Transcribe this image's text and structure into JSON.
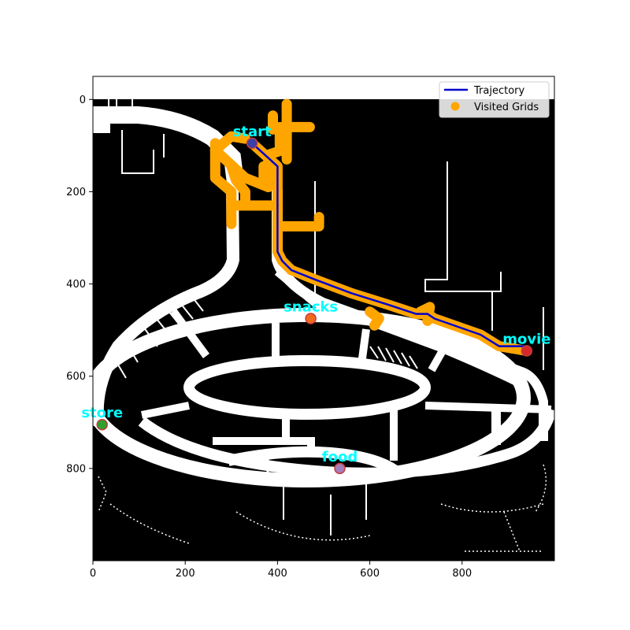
{
  "chart_data": {
    "type": "scatter",
    "xlim": [
      0,
      1000
    ],
    "ylim": [
      1000,
      -50
    ],
    "y_inverted": true,
    "grid": false,
    "legend_placement": "top-right",
    "x_ticks": [
      0,
      200,
      400,
      600,
      800
    ],
    "y_ticks": [
      0,
      200,
      400,
      600,
      800
    ],
    "background": "map image (black obstacles, white walkable corridors)",
    "series": [
      {
        "name": "Trajectory",
        "kind": "line",
        "color": "#0000cc",
        "points": [
          [
            345,
            95
          ],
          [
            400,
            145
          ],
          [
            400,
            330
          ],
          [
            410,
            350
          ],
          [
            430,
            370
          ],
          [
            480,
            390
          ],
          [
            560,
            420
          ],
          [
            640,
            445
          ],
          [
            700,
            465
          ],
          [
            725,
            465
          ],
          [
            740,
            475
          ],
          [
            840,
            510
          ],
          [
            880,
            535
          ],
          [
            940,
            535
          ]
        ]
      },
      {
        "name": "Visited Grids",
        "kind": "scatter",
        "color": "#ffa500",
        "segments": [
          [
            [
              345,
              95
            ],
            [
              400,
              145
            ],
            [
              400,
              330
            ],
            [
              410,
              350
            ],
            [
              430,
              370
            ],
            [
              480,
              390
            ],
            [
              560,
              420
            ],
            [
              640,
              445
            ],
            [
              700,
              465
            ],
            [
              725,
              465
            ],
            [
              740,
              475
            ],
            [
              840,
              510
            ],
            [
              880,
              535
            ],
            [
              940,
              545
            ]
          ],
          [
            [
              265,
              95
            ],
            [
              265,
              170
            ],
            [
              300,
              200
            ],
            [
              300,
              270
            ]
          ],
          [
            [
              265,
              110
            ],
            [
              330,
              170
            ],
            [
              380,
              190
            ]
          ],
          [
            [
              265,
              110
            ],
            [
              300,
              80
            ],
            [
              330,
              85
            ]
          ],
          [
            [
              300,
              145
            ],
            [
              310,
              175
            ],
            [
              330,
              200
            ],
            [
              330,
              230
            ],
            [
              300,
              230
            ]
          ],
          [
            [
              330,
              230
            ],
            [
              400,
              230
            ]
          ],
          [
            [
              370,
              145
            ],
            [
              370,
              175
            ],
            [
              380,
              175
            ],
            [
              380,
              120
            ],
            [
              410,
              110
            ],
            [
              410,
              80
            ],
            [
              410,
              60
            ],
            [
              470,
              60
            ]
          ],
          [
            [
              405,
              60
            ],
            [
              405,
              100
            ]
          ],
          [
            [
              400,
              275
            ],
            [
              490,
              275
            ]
          ],
          [
            [
              490,
              270
            ],
            [
              490,
              255
            ]
          ],
          [
            [
              390,
              35
            ],
            [
              390,
              65
            ]
          ],
          [
            [
              420,
              10
            ],
            [
              420,
              130
            ]
          ],
          [
            [
              600,
              460
            ],
            [
              620,
              475
            ],
            [
              610,
              490
            ]
          ],
          [
            [
              710,
              460
            ],
            [
              730,
              450
            ],
            [
              725,
              480
            ]
          ]
        ]
      }
    ],
    "points_of_interest": [
      {
        "label": "start",
        "x": 345,
        "y": 95,
        "marker_color": "#3b3fa8",
        "edge_color": "#c43c3c"
      },
      {
        "label": "snacks",
        "x": 472,
        "y": 475,
        "marker_color": "#f06b1f",
        "edge_color": "#c43c3c"
      },
      {
        "label": "movie",
        "x": 940,
        "y": 545,
        "marker_color": "#d6282a",
        "edge_color": "#c43c3c"
      },
      {
        "label": "store",
        "x": 20,
        "y": 705,
        "marker_color": "#2ea02c",
        "edge_color": "#c43c3c"
      },
      {
        "label": "food",
        "x": 535,
        "y": 800,
        "marker_color": "#a47eb8",
        "edge_color": "#c43c3c"
      }
    ],
    "label_color": "#00ffff"
  }
}
